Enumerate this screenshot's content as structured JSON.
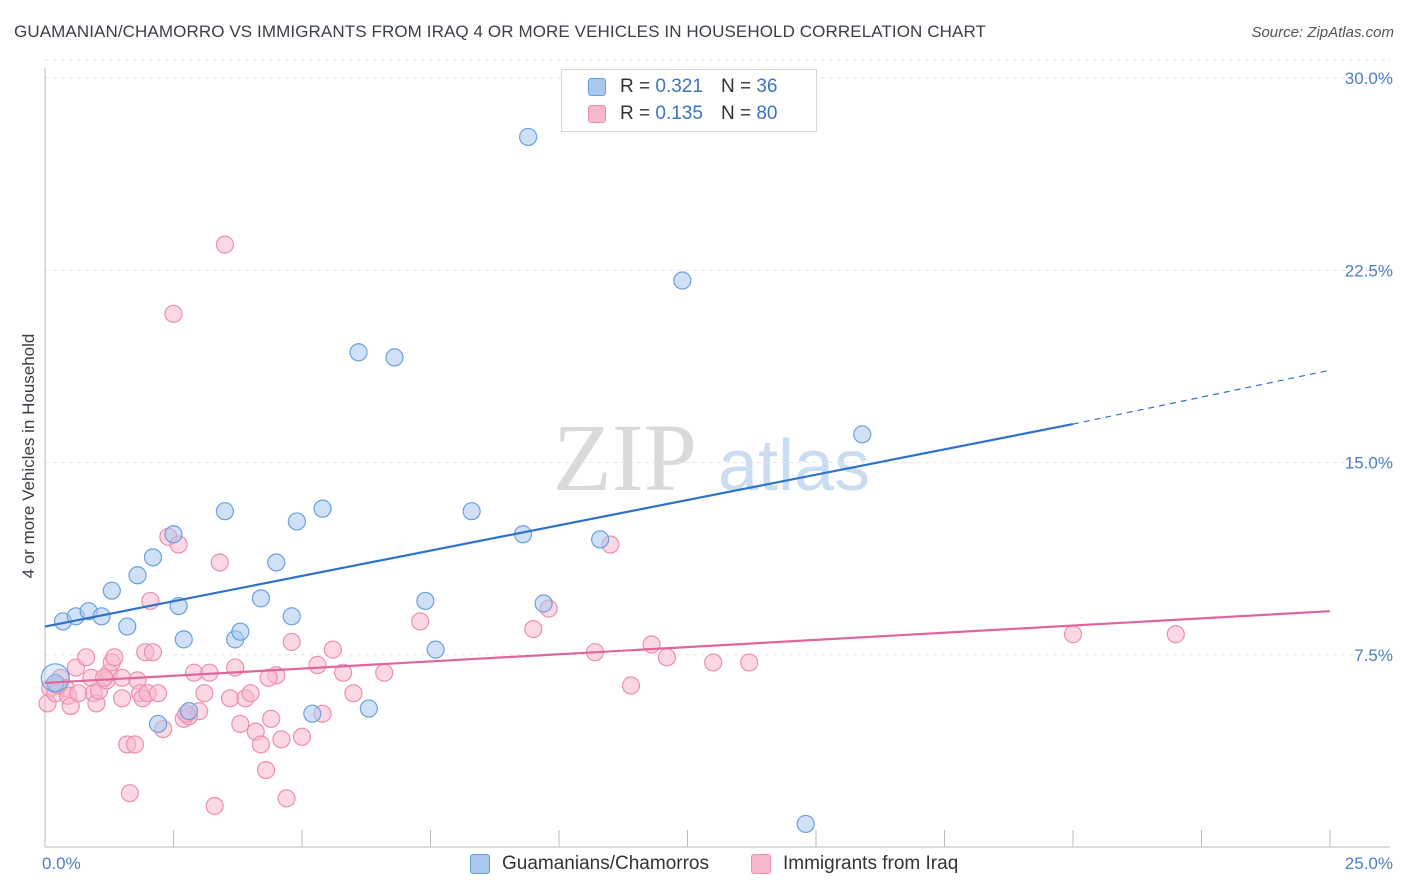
{
  "title": "GUAMANIAN/CHAMORRO VS IMMIGRANTS FROM IRAQ 4 OR MORE VEHICLES IN HOUSEHOLD CORRELATION CHART",
  "source": "Source: ZipAtlas.com",
  "watermark": {
    "zip": "ZIP",
    "atlas": "atlas"
  },
  "legend_top": {
    "rows": [
      {
        "r_label": "R = ",
        "r_value": "0.321",
        "n_label": "N = ",
        "n_value": "36",
        "color": "#a9c8f0"
      },
      {
        "r_label": "R = ",
        "r_value": "0.135",
        "n_label": "N = ",
        "n_value": "80",
        "color": "#f7b8cc"
      }
    ]
  },
  "legend_bottom": {
    "items": [
      {
        "label": "Guamanians/Chamorros",
        "color": "#a9c8f0"
      },
      {
        "label": "Immigrants from Iraq",
        "color": "#f7b8cc"
      }
    ]
  },
  "chart_data": {
    "type": "scatter",
    "title": "GUAMANIAN/CHAMORRO VS IMMIGRANTS FROM IRAQ 4 OR MORE VEHICLES IN HOUSEHOLD CORRELATION CHART",
    "xlabel": "",
    "ylabel": "4 or more Vehicles in Household",
    "xlim": [
      0,
      25
    ],
    "ylim": [
      0,
      30
    ],
    "x_tick_labels": [
      "0.0%",
      "25.0%"
    ],
    "y_ticks": [
      7.5,
      15.0,
      22.5,
      30.0
    ],
    "y_tick_labels": [
      "7.5%",
      "15.0%",
      "22.5%",
      "30.0%"
    ],
    "series": [
      {
        "name": "Guamanians/Chamorros",
        "color": "#6aa0e0",
        "fill": "#a9c8f0",
        "trend": {
          "x0": 0,
          "y0": 8.6,
          "x1": 20.0,
          "y1": 16.5,
          "dash_x1": 25.0,
          "dash_y1": 18.6,
          "color": "#2f72cc"
        },
        "points": [
          [
            0.2,
            6.4
          ],
          [
            0.35,
            8.8
          ],
          [
            0.6,
            9.0
          ],
          [
            0.85,
            9.2
          ],
          [
            1.1,
            9.0
          ],
          [
            1.3,
            10.0
          ],
          [
            1.6,
            8.6
          ],
          [
            1.8,
            10.6
          ],
          [
            2.1,
            11.3
          ],
          [
            2.2,
            4.8
          ],
          [
            2.5,
            12.2
          ],
          [
            2.6,
            9.4
          ],
          [
            2.7,
            8.1
          ],
          [
            2.8,
            5.3
          ],
          [
            3.5,
            13.1
          ],
          [
            3.7,
            8.1
          ],
          [
            3.8,
            8.4
          ],
          [
            4.2,
            9.7
          ],
          [
            4.5,
            11.1
          ],
          [
            4.8,
            9.0
          ],
          [
            4.9,
            12.7
          ],
          [
            5.2,
            5.2
          ],
          [
            5.4,
            13.2
          ],
          [
            6.1,
            19.3
          ],
          [
            6.3,
            5.4
          ],
          [
            6.8,
            19.1
          ],
          [
            7.4,
            9.6
          ],
          [
            7.6,
            7.7
          ],
          [
            8.3,
            13.1
          ],
          [
            9.3,
            12.2
          ],
          [
            9.4,
            27.7
          ],
          [
            9.7,
            9.5
          ],
          [
            10.8,
            12.0
          ],
          [
            12.4,
            22.1
          ],
          [
            14.8,
            0.9
          ],
          [
            15.9,
            16.1
          ]
        ]
      },
      {
        "name": "Immigrants from Iraq",
        "color": "#ec8fae",
        "fill": "#f7b8cc",
        "trend": {
          "x0": 0,
          "y0": 6.4,
          "x1": 25.0,
          "y1": 9.2,
          "color": "#e0659a"
        },
        "points": [
          [
            0.05,
            5.6
          ],
          [
            0.1,
            6.2
          ],
          [
            0.2,
            6.0
          ],
          [
            0.3,
            6.6
          ],
          [
            0.4,
            6.2
          ],
          [
            0.45,
            5.9
          ],
          [
            0.5,
            5.5
          ],
          [
            0.6,
            7.0
          ],
          [
            0.65,
            6.0
          ],
          [
            0.8,
            7.4
          ],
          [
            0.9,
            6.6
          ],
          [
            0.95,
            6.0
          ],
          [
            1.0,
            5.6
          ],
          [
            1.05,
            6.1
          ],
          [
            1.2,
            6.5
          ],
          [
            1.25,
            6.8
          ],
          [
            1.3,
            7.2
          ],
          [
            1.35,
            7.4
          ],
          [
            1.5,
            5.8
          ],
          [
            1.5,
            6.6
          ],
          [
            1.6,
            4.0
          ],
          [
            1.65,
            2.1
          ],
          [
            1.75,
            4.0
          ],
          [
            1.8,
            6.5
          ],
          [
            1.85,
            6.0
          ],
          [
            1.9,
            5.8
          ],
          [
            1.95,
            7.6
          ],
          [
            2.0,
            6.0
          ],
          [
            2.05,
            9.6
          ],
          [
            2.1,
            7.6
          ],
          [
            2.2,
            6.0
          ],
          [
            2.3,
            4.6
          ],
          [
            2.4,
            12.1
          ],
          [
            2.5,
            20.8
          ],
          [
            2.6,
            11.8
          ],
          [
            2.7,
            5.0
          ],
          [
            2.8,
            5.1
          ],
          [
            2.9,
            6.8
          ],
          [
            3.0,
            5.3
          ],
          [
            3.1,
            6.0
          ],
          [
            3.2,
            6.8
          ],
          [
            3.3,
            1.6
          ],
          [
            3.4,
            11.1
          ],
          [
            3.5,
            23.5
          ],
          [
            3.6,
            5.8
          ],
          [
            3.7,
            7.0
          ],
          [
            3.8,
            4.8
          ],
          [
            3.9,
            5.8
          ],
          [
            4.0,
            6.0
          ],
          [
            4.1,
            4.5
          ],
          [
            4.2,
            4.0
          ],
          [
            4.3,
            3.0
          ],
          [
            4.4,
            5.0
          ],
          [
            4.5,
            6.7
          ],
          [
            4.6,
            4.2
          ],
          [
            4.7,
            1.9
          ],
          [
            4.8,
            8.0
          ],
          [
            5.0,
            4.3
          ],
          [
            5.3,
            7.1
          ],
          [
            5.4,
            5.2
          ],
          [
            5.6,
            7.7
          ],
          [
            5.8,
            6.8
          ],
          [
            6.0,
            6.0
          ],
          [
            6.6,
            6.8
          ],
          [
            7.3,
            8.8
          ],
          [
            9.5,
            8.5
          ],
          [
            9.8,
            9.3
          ],
          [
            10.7,
            7.6
          ],
          [
            11.0,
            11.8
          ],
          [
            11.4,
            6.3
          ],
          [
            11.8,
            7.9
          ],
          [
            12.1,
            7.4
          ],
          [
            13.0,
            7.2
          ],
          [
            13.7,
            7.2
          ],
          [
            20.0,
            8.3
          ],
          [
            22.0,
            8.3
          ],
          [
            0.25,
            6.3
          ],
          [
            1.15,
            6.6
          ],
          [
            2.75,
            5.2
          ],
          [
            4.35,
            6.6
          ]
        ]
      }
    ],
    "legend_placement": "top-center",
    "grid": true
  }
}
